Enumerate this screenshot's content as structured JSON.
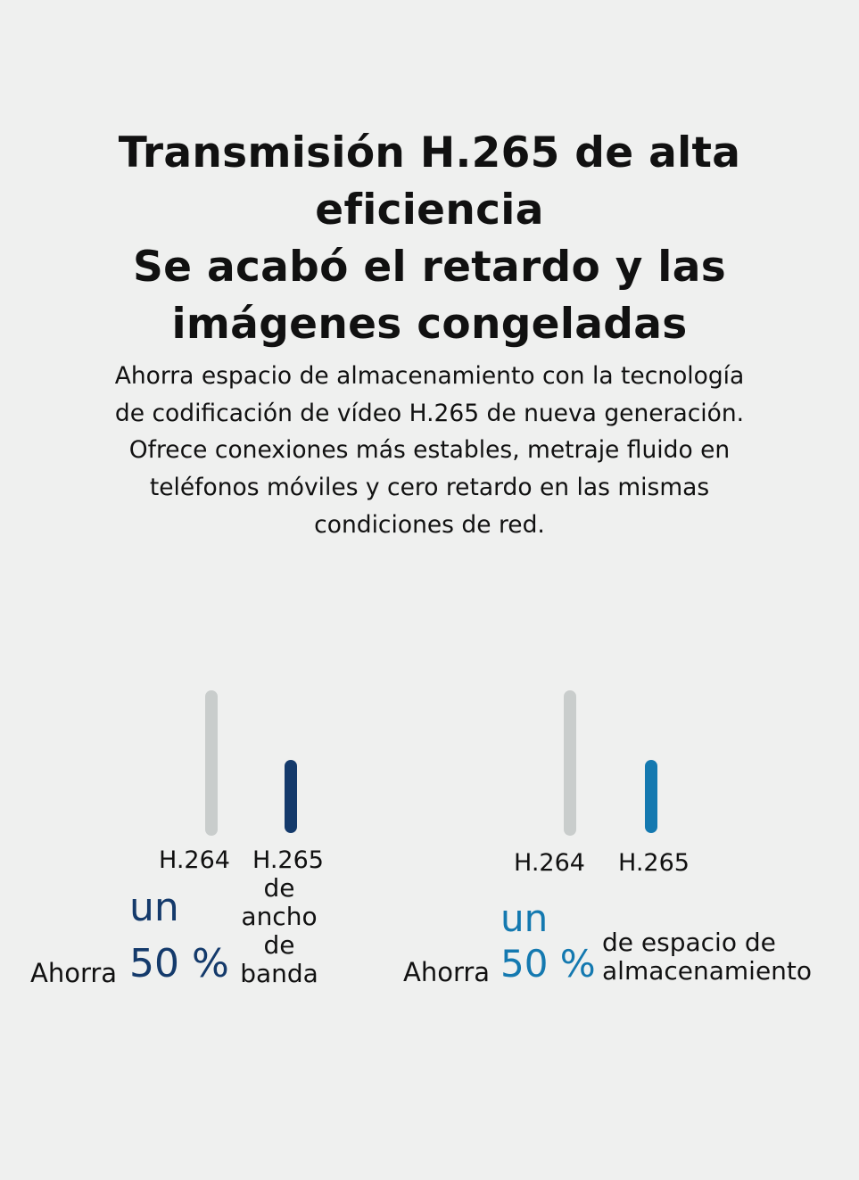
{
  "title_lines": [
    "Transmisión H.265 de alta",
    "eficiencia",
    "Se acabó el retardo y las",
    "imágenes congeladas"
  ],
  "description_lines": [
    "Ahorra espacio de almacenamiento con la tecnología",
    "de codificación de vídeo H.265 de nueva generación.",
    "Ofrece conexiones más estables, metraje fluido en",
    "teléfonos móviles y cero retardo en las mismas",
    "condiciones de red."
  ],
  "colors": {
    "background": "#eff0ef",
    "bar_h264": "#c9cdcc",
    "bar_bandwidth": "#143a6b",
    "bar_storage": "#1479b0"
  },
  "bandwidth": {
    "bars": [
      {
        "label": "H.264",
        "value": 100
      },
      {
        "label": "H.265",
        "value": 50
      }
    ],
    "prefix": "Ahorra",
    "amount_line1": "un",
    "amount_line2": "50 %",
    "suffix_lines": [
      "de",
      "ancho",
      "de",
      "banda"
    ]
  },
  "storage": {
    "bars": [
      {
        "label": "H.264",
        "value": 100
      },
      {
        "label": "H.265",
        "value": 50
      }
    ],
    "prefix": "Ahorra",
    "amount_line1": "un",
    "amount_line2": "50 %",
    "suffix_lines": [
      "de espacio de",
      "almacenamiento"
    ]
  }
}
